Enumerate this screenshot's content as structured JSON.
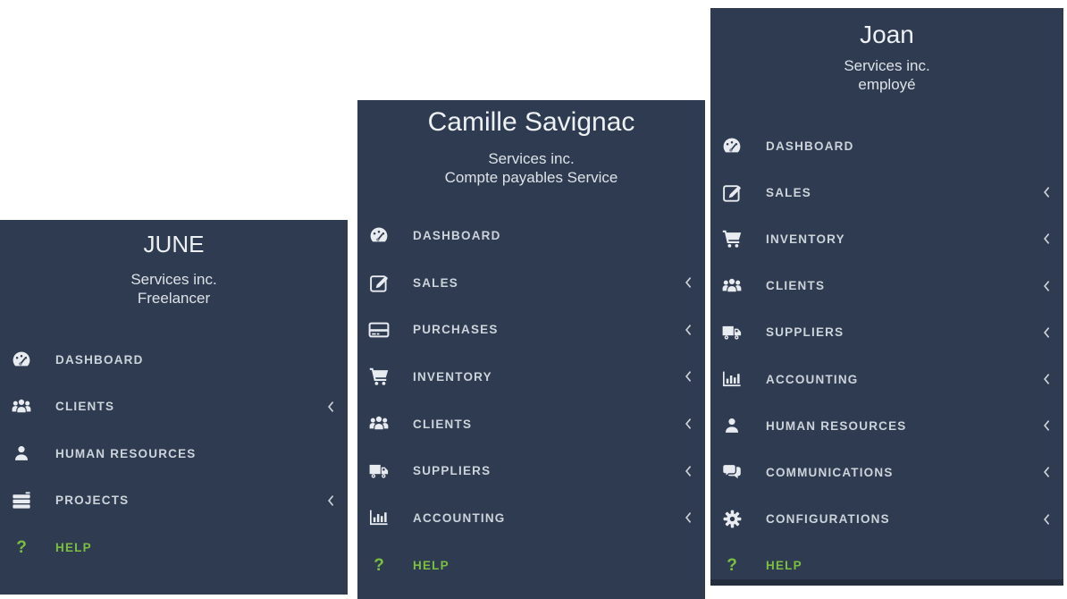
{
  "colors": {
    "sidebar_bg": "#2e3b50",
    "strip": "#242e3c",
    "text": "#ccd3da",
    "subtle": "#dde2e7",
    "bright": "#eef1f4",
    "icon": "#e8ebef",
    "green": "#7cbf3f",
    "page_bg": "#ffffff"
  },
  "panels": [
    {
      "user_name": "JUNE",
      "company": "Services inc.",
      "role": "Freelancer",
      "items": [
        {
          "label": "DASHBOARD",
          "icon": "dashboard-icon",
          "has_submenu": false,
          "highlight": false
        },
        {
          "label": "CLIENTS",
          "icon": "clients-icon",
          "has_submenu": true,
          "highlight": false
        },
        {
          "label": "HUMAN RESOURCES",
          "icon": "user-icon",
          "has_submenu": false,
          "highlight": false
        },
        {
          "label": "PROJECTS",
          "icon": "projects-icon",
          "has_submenu": true,
          "highlight": false
        },
        {
          "label": "HELP",
          "icon": "help-icon",
          "has_submenu": false,
          "highlight": true
        }
      ]
    },
    {
      "user_name": "Camille Savignac",
      "company": "Services inc.",
      "role": "Compte payables Service",
      "items": [
        {
          "label": "DASHBOARD",
          "icon": "dashboard-icon",
          "has_submenu": false,
          "highlight": false
        },
        {
          "label": "SALES",
          "icon": "edit-icon",
          "has_submenu": true,
          "highlight": false
        },
        {
          "label": "PURCHASES",
          "icon": "credit-card-icon",
          "has_submenu": true,
          "highlight": false
        },
        {
          "label": "INVENTORY",
          "icon": "cart-icon",
          "has_submenu": true,
          "highlight": false
        },
        {
          "label": "CLIENTS",
          "icon": "clients-icon",
          "has_submenu": true,
          "highlight": false
        },
        {
          "label": "SUPPLIERS",
          "icon": "truck-icon",
          "has_submenu": true,
          "highlight": false
        },
        {
          "label": "ACCOUNTING",
          "icon": "bar-chart-icon",
          "has_submenu": true,
          "highlight": false
        },
        {
          "label": "HELP",
          "icon": "help-icon",
          "has_submenu": false,
          "highlight": true
        }
      ]
    },
    {
      "user_name": "Joan",
      "company": "Services inc.",
      "role": "employé",
      "items": [
        {
          "label": "DASHBOARD",
          "icon": "dashboard-icon",
          "has_submenu": false,
          "highlight": false
        },
        {
          "label": "SALES",
          "icon": "edit-icon",
          "has_submenu": true,
          "highlight": false
        },
        {
          "label": "INVENTORY",
          "icon": "cart-icon",
          "has_submenu": true,
          "highlight": false
        },
        {
          "label": "CLIENTS",
          "icon": "clients-icon",
          "has_submenu": true,
          "highlight": false
        },
        {
          "label": "SUPPLIERS",
          "icon": "truck-icon",
          "has_submenu": true,
          "highlight": false
        },
        {
          "label": "ACCOUNTING",
          "icon": "bar-chart-icon",
          "has_submenu": true,
          "highlight": false
        },
        {
          "label": "HUMAN RESOURCES",
          "icon": "user-icon",
          "has_submenu": true,
          "highlight": false
        },
        {
          "label": "COMMUNICATIONS",
          "icon": "comments-icon",
          "has_submenu": true,
          "highlight": false
        },
        {
          "label": "CONFIGURATIONS",
          "icon": "gear-icon",
          "has_submenu": true,
          "highlight": false
        },
        {
          "label": "HELP",
          "icon": "help-icon",
          "has_submenu": false,
          "highlight": true
        }
      ]
    }
  ]
}
